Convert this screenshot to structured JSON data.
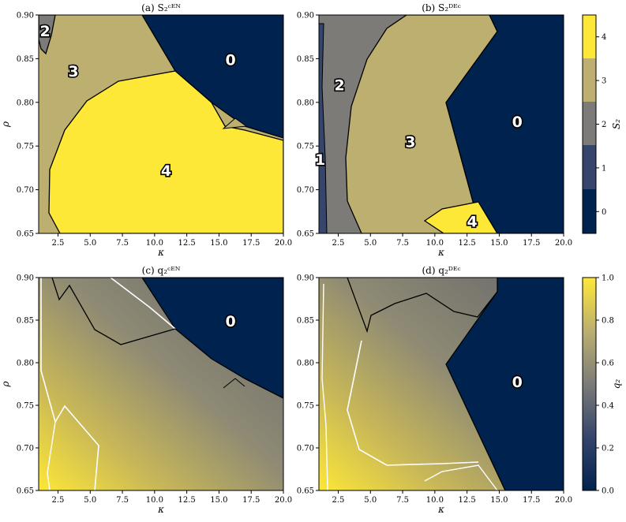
{
  "colors": {
    "c0": "#00224e",
    "c1": "#35456c",
    "c2": "#7c7b78",
    "c3": "#bcaf6f",
    "c4": "#fde737",
    "q_low": "#00224e",
    "q_mid": "#7c7b78",
    "q_high": "#fee838"
  },
  "chart_data": [
    {
      "id": "a",
      "type": "heatmap",
      "title": "(a) S₂ᶜᴱᴺ",
      "xlabel": "κ",
      "ylabel": "ρ",
      "xlim": [
        1.0,
        20.0
      ],
      "ylim": [
        0.65,
        0.9
      ],
      "x_ticks": [
        "2.5",
        "5.0",
        "7.5",
        "10.0",
        "12.5",
        "15.0",
        "17.5",
        "20.0"
      ],
      "y_ticks": [
        "0.65",
        "0.70",
        "0.75",
        "0.80",
        "0.85",
        "0.90"
      ],
      "region_labels": [
        {
          "text": "2",
          "kappa": 1.5,
          "rho": 0.882
        },
        {
          "text": "3",
          "kappa": 3.7,
          "rho": 0.836
        },
        {
          "text": "0",
          "kappa": 15.9,
          "rho": 0.849
        },
        {
          "text": "4",
          "kappa": 10.9,
          "rho": 0.722
        }
      ]
    },
    {
      "id": "b",
      "type": "heatmap",
      "title": "(b) S₂ᴰᴱᶜ",
      "xlabel": "κ",
      "ylabel": "",
      "xlim": [
        1.0,
        20.0
      ],
      "ylim": [
        0.65,
        0.9
      ],
      "x_ticks": [
        "2.5",
        "5.0",
        "7.5",
        "10.0",
        "12.5",
        "15.0",
        "17.5",
        "20.0"
      ],
      "y_ticks": [
        "0.65",
        "0.70",
        "0.75",
        "0.80",
        "0.85",
        "0.90"
      ],
      "region_labels": [
        {
          "text": "2",
          "kappa": 2.6,
          "rho": 0.82
        },
        {
          "text": "1",
          "kappa": 1.1,
          "rho": 0.735
        },
        {
          "text": "3",
          "kappa": 8.1,
          "rho": 0.755
        },
        {
          "text": "0",
          "kappa": 16.4,
          "rho": 0.778
        },
        {
          "text": "4",
          "kappa": 12.9,
          "rho": 0.664
        }
      ]
    },
    {
      "id": "c",
      "type": "heatmap",
      "title": "(c) q₂ᶜᴱᴺ",
      "xlabel": "κ",
      "ylabel": "ρ",
      "xlim": [
        1.0,
        20.0
      ],
      "ylim": [
        0.65,
        0.9
      ],
      "x_ticks": [
        "2.5",
        "5.0",
        "7.5",
        "10.0",
        "12.5",
        "15.0",
        "17.5",
        "20.0"
      ],
      "y_ticks": [
        "0.65",
        "0.70",
        "0.75",
        "0.80",
        "0.85",
        "0.90"
      ],
      "region_labels": [
        {
          "text": "0",
          "kappa": 15.9,
          "rho": 0.849
        }
      ]
    },
    {
      "id": "d",
      "type": "heatmap",
      "title": "(d) q₂ᴰᴱᶜ",
      "xlabel": "κ",
      "ylabel": "",
      "xlim": [
        1.0,
        20.0
      ],
      "ylim": [
        0.65,
        0.9
      ],
      "x_ticks": [
        "2.5",
        "5.0",
        "7.5",
        "10.0",
        "12.5",
        "15.0",
        "17.5",
        "20.0"
      ],
      "y_ticks": [
        "0.65",
        "0.70",
        "0.75",
        "0.80",
        "0.85",
        "0.90"
      ],
      "region_labels": [
        {
          "text": "0",
          "kappa": 16.4,
          "rho": 0.778
        }
      ]
    }
  ],
  "colorbars": [
    {
      "id": "s2",
      "label": "S₂",
      "ticks": [
        "0",
        "1",
        "2",
        "3",
        "4"
      ],
      "range": [
        -0.5,
        4.5
      ]
    },
    {
      "id": "q2",
      "label": "q₂",
      "ticks": [
        "0.0",
        "0.2",
        "0.4",
        "0.6",
        "0.8",
        "1.0"
      ],
      "range": [
        0.0,
        1.0
      ]
    }
  ]
}
